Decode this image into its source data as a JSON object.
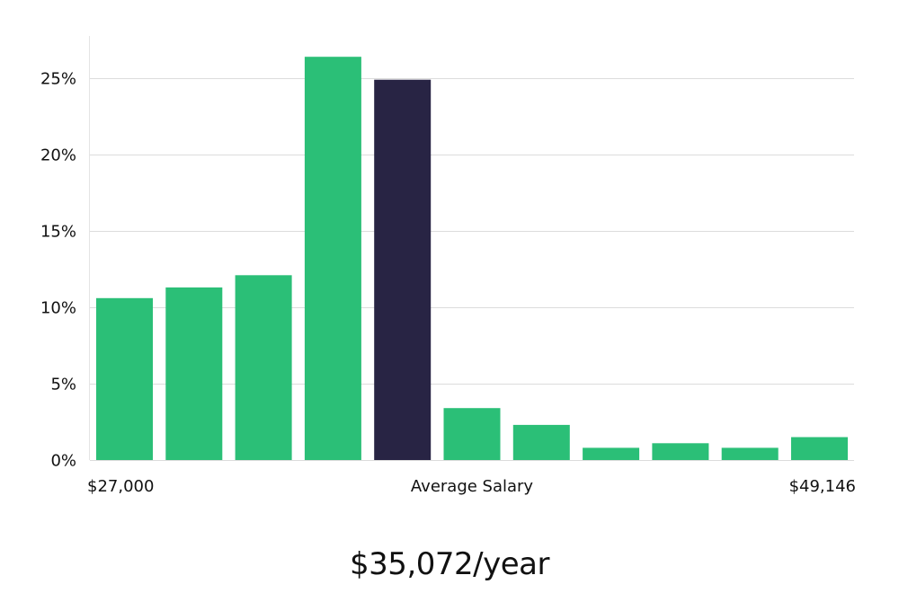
{
  "chart_data": {
    "type": "bar",
    "title": "$35,072/year",
    "xlabel": "Average Salary",
    "ylabel": "",
    "x_min_label": "$27,000",
    "x_max_label": "$49,146",
    "ylim": [
      0,
      27.5
    ],
    "yticks": [
      0,
      5,
      10,
      15,
      20,
      25
    ],
    "ytick_labels": [
      "0%",
      "5%",
      "10%",
      "15%",
      "20%",
      "25%"
    ],
    "grid": true,
    "values": [
      10.6,
      11.3,
      12.1,
      26.4,
      24.9,
      3.4,
      2.3,
      0.8,
      1.1,
      0.8,
      1.5
    ],
    "highlight_index": 4
  },
  "colors": {
    "bar": "#2bbf77",
    "bar_highlight": "#282444"
  }
}
